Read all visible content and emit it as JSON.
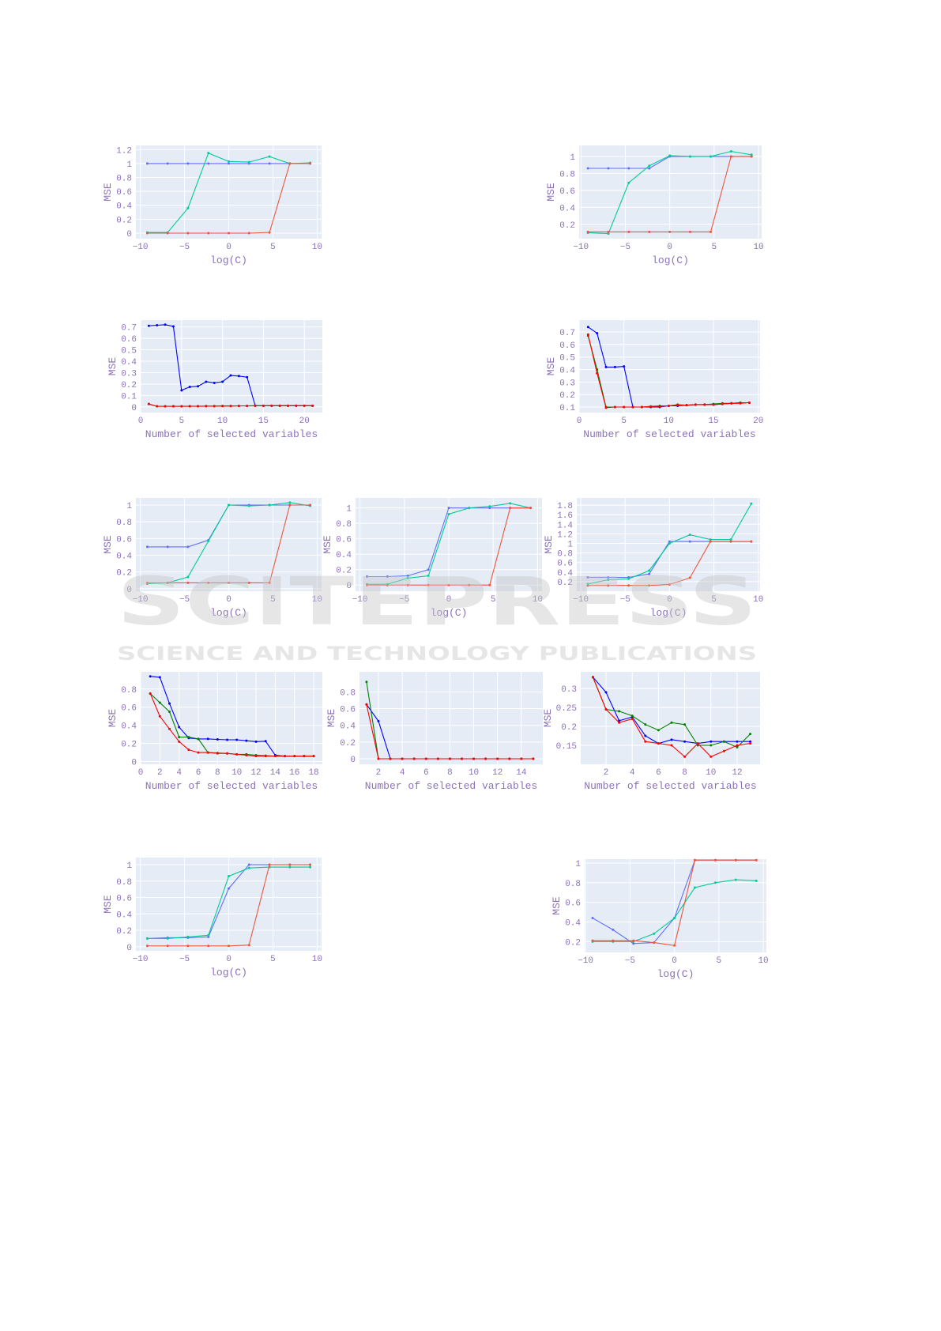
{
  "watermark": {
    "main": "SCITEPRESS",
    "sub": "SCIENCE AND TECHNOLOGY PUBLICATIONS"
  },
  "colors": {
    "plot_bg": "#e5ecf6",
    "grid": "#ffffff",
    "tick_text": "#8b72b8"
  },
  "chart_data": [
    {
      "id": "A",
      "type": "line",
      "xlabel": "log(C)",
      "ylabel": "MSE",
      "xlim": [
        -10.5,
        10.5
      ],
      "ylim": [
        -0.08,
        1.26
      ],
      "xticks": [
        -10,
        -5,
        0,
        5,
        10
      ],
      "yticks": [
        0,
        0.2,
        0.4,
        0.6,
        0.8,
        1,
        1.2
      ],
      "x": [
        -9.21,
        -6.91,
        -4.61,
        -2.3,
        0,
        2.3,
        4.61,
        6.91,
        9.21
      ],
      "series": [
        {
          "color": "#636efa",
          "values": [
            1,
            1,
            1,
            1,
            1,
            1,
            1,
            1,
            1
          ]
        },
        {
          "color": "#00cc96",
          "values": [
            0.01,
            0.01,
            0.36,
            1.15,
            1.03,
            1.02,
            1.1,
            1.0,
            1.01
          ]
        },
        {
          "color": "#ef553b",
          "values": [
            0,
            0,
            0,
            0,
            0,
            0,
            0.01,
            1.0,
            1.0
          ]
        }
      ]
    },
    {
      "id": "B",
      "type": "line",
      "xlabel": "log(C)",
      "ylabel": "MSE",
      "xlim": [
        -10.2,
        10.35
      ],
      "ylim": [
        0.03,
        1.13
      ],
      "xticks": [
        -10,
        -5,
        0,
        5,
        10
      ],
      "yticks": [
        0.2,
        0.4,
        0.6,
        0.8,
        1
      ],
      "x": [
        -9.21,
        -6.91,
        -4.61,
        -2.3,
        0,
        2.3,
        4.61,
        6.91,
        9.21
      ],
      "series": [
        {
          "color": "#636efa",
          "values": [
            0.86,
            0.86,
            0.86,
            0.86,
            1.0,
            1.0,
            1.0,
            1.0,
            1.0
          ]
        },
        {
          "color": "#00cc96",
          "values": [
            0.1,
            0.09,
            0.69,
            0.89,
            1.01,
            1.0,
            1.0,
            1.06,
            1.02
          ]
        },
        {
          "color": "#ef553b",
          "values": [
            0.11,
            0.11,
            0.11,
            0.11,
            0.11,
            0.11,
            0.11,
            1.0,
            1.0
          ]
        }
      ]
    },
    {
      "id": "C",
      "type": "line",
      "xlabel": "Number of selected variables",
      "ylabel": "MSE",
      "xlim": [
        0,
        22.2
      ],
      "ylim": [
        -0.05,
        0.76
      ],
      "xticks": [
        0,
        5,
        10,
        15,
        20
      ],
      "yticks": [
        0,
        0.1,
        0.2,
        0.3,
        0.4,
        0.5,
        0.6,
        0.7
      ],
      "x": [
        1,
        2,
        3,
        4,
        5,
        6,
        7,
        8,
        9,
        10,
        11,
        12,
        13,
        14,
        15,
        16,
        17,
        18,
        19,
        20,
        21
      ],
      "series": [
        {
          "color": "#0000ff",
          "values": [
            0.71,
            0.715,
            0.72,
            0.705,
            0.145,
            0.175,
            0.18,
            0.22,
            0.21,
            0.22,
            0.275,
            0.27,
            0.26,
            0.01,
            0.01,
            0.01,
            0.01,
            0.01,
            0.01,
            0.01,
            0.01
          ]
        },
        {
          "color": "#008000",
          "values": [
            0.025,
            0.005,
            0.005,
            0.005,
            0.005,
            0.006,
            0.006,
            0.007,
            0.007,
            0.008,
            0.008,
            0.009,
            0.009,
            0.01,
            0.01,
            0.01,
            0.01,
            0.01,
            0.01,
            0.01,
            0.01
          ]
        },
        {
          "color": "#ff0000",
          "values": [
            0.025,
            0.005,
            0.005,
            0.005,
            0.005,
            0.005,
            0.005,
            0.006,
            0.006,
            0.007,
            0.007,
            0.008,
            0.008,
            0.009,
            0.009,
            0.01,
            0.01,
            0.01,
            0.01,
            0.01,
            0.01
          ]
        }
      ]
    },
    {
      "id": "D",
      "type": "line",
      "xlabel": "Number of selected variables",
      "ylabel": "MSE",
      "xlim": [
        0,
        20.2
      ],
      "ylim": [
        0.056,
        0.795
      ],
      "xticks": [
        0,
        5,
        10,
        15,
        20
      ],
      "yticks": [
        0.1,
        0.2,
        0.3,
        0.4,
        0.5,
        0.6,
        0.7
      ],
      "x": [
        1,
        2,
        3,
        4,
        5,
        6,
        7,
        8,
        9,
        10,
        11,
        12,
        13,
        14,
        15,
        16,
        17,
        18,
        19
      ],
      "series": [
        {
          "color": "#0000ff",
          "values": [
            0.74,
            0.69,
            0.42,
            0.42,
            0.425,
            0.1,
            0.1,
            0.1,
            0.1,
            0.11,
            0.11,
            0.115,
            0.12,
            0.12,
            0.12,
            0.125,
            0.13,
            0.135,
            0.135
          ]
        },
        {
          "color": "#008000",
          "values": [
            0.67,
            0.4,
            0.1,
            0.1,
            0.1,
            0.1,
            0.1,
            0.105,
            0.11,
            0.11,
            0.12,
            0.115,
            0.12,
            0.12,
            0.125,
            0.13,
            0.13,
            0.135,
            0.135
          ]
        },
        {
          "color": "#ff0000",
          "values": [
            0.68,
            0.37,
            0.095,
            0.1,
            0.1,
            0.1,
            0.1,
            0.105,
            0.105,
            0.11,
            0.115,
            0.115,
            0.12,
            0.12,
            0.12,
            0.125,
            0.13,
            0.13,
            0.135
          ]
        }
      ]
    },
    {
      "id": "E",
      "type": "line",
      "xlabel": "log(C)",
      "ylabel": "MSE",
      "xlim": [
        -10.5,
        10.5
      ],
      "ylim": [
        -0.03,
        1.085
      ],
      "xticks": [
        -10,
        -5,
        0,
        5,
        10
      ],
      "yticks": [
        0,
        0.2,
        0.4,
        0.6,
        0.8,
        1
      ],
      "x": [
        -9.21,
        -6.91,
        -4.61,
        -2.3,
        0,
        2.3,
        4.61,
        6.91,
        9.21
      ],
      "series": [
        {
          "color": "#636efa",
          "values": [
            0.5,
            0.5,
            0.5,
            0.58,
            1.0,
            1.0,
            1.0,
            1.0,
            1.0
          ]
        },
        {
          "color": "#00cc96",
          "values": [
            0.06,
            0.07,
            0.14,
            0.57,
            1.0,
            0.99,
            1.0,
            1.03,
            0.99
          ]
        },
        {
          "color": "#ef553b",
          "values": [
            0.07,
            0.07,
            0.07,
            0.07,
            0.07,
            0.07,
            0.07,
            1.0,
            1.0
          ]
        }
      ]
    },
    {
      "id": "F",
      "type": "line",
      "xlabel": "log(C)",
      "ylabel": "MSE",
      "xlim": [
        -10.5,
        10.5
      ],
      "ylim": [
        -0.08,
        1.13
      ],
      "xticks": [
        -10,
        -5,
        0,
        5,
        10
      ],
      "yticks": [
        0,
        0.2,
        0.4,
        0.6,
        0.8,
        1
      ],
      "x": [
        -9.21,
        -6.91,
        -4.61,
        -2.3,
        0,
        2.3,
        4.61,
        6.91,
        9.21
      ],
      "series": [
        {
          "color": "#636efa",
          "values": [
            0.11,
            0.11,
            0.12,
            0.2,
            1.0,
            1.0,
            1.0,
            1.0,
            1.0
          ]
        },
        {
          "color": "#00cc96",
          "values": [
            0.01,
            0.01,
            0.09,
            0.12,
            0.92,
            1.0,
            1.02,
            1.06,
            1.0
          ]
        },
        {
          "color": "#ef553b",
          "values": [
            0,
            0,
            0,
            0,
            0,
            0,
            0,
            1.0,
            1.0
          ]
        }
      ]
    },
    {
      "id": "G",
      "type": "line",
      "xlabel": "log(C)",
      "ylabel": "MSE",
      "xlim": [
        -10.45,
        10.2
      ],
      "ylim": [
        0.0,
        1.95
      ],
      "xticks": [
        -10,
        -5,
        0,
        5,
        10
      ],
      "yticks": [
        0.2,
        0.4,
        0.6,
        0.8,
        1,
        1.2,
        1.4,
        1.6,
        1.8
      ],
      "x": [
        -9.21,
        -6.91,
        -4.61,
        -2.3,
        0,
        2.3,
        4.61,
        6.91,
        9.21
      ],
      "series": [
        {
          "color": "#636efa",
          "values": [
            0.29,
            0.29,
            0.29,
            0.36,
            1.04,
            1.04,
            1.04,
            1.04,
            1.04
          ]
        },
        {
          "color": "#00cc96",
          "values": [
            0.15,
            0.24,
            0.26,
            0.43,
            1.0,
            1.18,
            1.08,
            1.08,
            1.83
          ]
        },
        {
          "color": "#ef553b",
          "values": [
            0.12,
            0.12,
            0.12,
            0.12,
            0.14,
            0.28,
            1.04,
            1.04,
            1.04
          ]
        }
      ]
    },
    {
      "id": "H",
      "type": "line",
      "xlabel": "Number of selected variables",
      "ylabel": "MSE",
      "xlim": [
        0,
        18.9
      ],
      "ylim": [
        -0.03,
        0.99
      ],
      "xticks": [
        0,
        2,
        4,
        6,
        8,
        10,
        12,
        14,
        16,
        18
      ],
      "yticks": [
        0,
        0.2,
        0.4,
        0.6,
        0.8
      ],
      "x": [
        1,
        2,
        3,
        4,
        5,
        6,
        7,
        8,
        9,
        10,
        11,
        12,
        13,
        14,
        15,
        16,
        17,
        18
      ],
      "series": [
        {
          "color": "#0000ff",
          "values": [
            0.94,
            0.93,
            0.64,
            0.38,
            0.26,
            0.25,
            0.25,
            0.245,
            0.24,
            0.24,
            0.23,
            0.22,
            0.225,
            0.07,
            0.06,
            0.06,
            0.06,
            0.06
          ]
        },
        {
          "color": "#008000",
          "values": [
            0.75,
            0.65,
            0.55,
            0.27,
            0.27,
            0.25,
            0.1,
            0.095,
            0.09,
            0.08,
            0.08,
            0.07,
            0.065,
            0.06,
            0.06,
            0.06,
            0.06,
            0.06
          ]
        },
        {
          "color": "#ff0000",
          "values": [
            0.75,
            0.5,
            0.36,
            0.22,
            0.13,
            0.1,
            0.1,
            0.09,
            0.09,
            0.08,
            0.07,
            0.06,
            0.06,
            0.06,
            0.06,
            0.06,
            0.06,
            0.06
          ]
        }
      ]
    },
    {
      "id": "I",
      "type": "line",
      "xlabel": "Number of selected variables",
      "ylabel": "MSE",
      "xlim": [
        0.41,
        15.8
      ],
      "ylim": [
        -0.066,
        1.04
      ],
      "xticks": [
        2,
        4,
        6,
        8,
        10,
        12,
        14
      ],
      "yticks": [
        0,
        0.2,
        0.4,
        0.6,
        0.8
      ],
      "x": [
        1,
        2,
        3,
        4,
        5,
        6,
        7,
        8,
        9,
        10,
        11,
        12,
        13,
        14,
        15
      ],
      "series": [
        {
          "color": "#0000ff",
          "values": [
            0.65,
            0.45,
            0,
            0,
            0,
            0,
            0,
            0,
            0,
            0,
            0,
            0,
            0,
            0,
            0
          ]
        },
        {
          "color": "#008000",
          "values": [
            0.92,
            0,
            0,
            0,
            0,
            0,
            0,
            0,
            0,
            0,
            0,
            0,
            0,
            0,
            0
          ]
        },
        {
          "color": "#ff0000",
          "values": [
            0.65,
            0,
            0,
            0,
            0,
            0,
            0,
            0,
            0,
            0,
            0,
            0,
            0,
            0,
            0
          ]
        }
      ]
    },
    {
      "id": "J",
      "type": "line",
      "xlabel": "Number of selected variables",
      "ylabel": "MSE",
      "xlim": [
        0.07,
        13.75
      ],
      "ylim": [
        0.1,
        0.344
      ],
      "xticks": [
        2,
        4,
        6,
        8,
        10,
        12
      ],
      "yticks": [
        0.15,
        0.2,
        0.25,
        0.3
      ],
      "x": [
        1,
        2,
        3,
        4,
        5,
        6,
        7,
        8,
        9,
        10,
        11,
        12,
        13
      ],
      "series": [
        {
          "color": "#0000ff",
          "values": [
            0.33,
            0.29,
            0.215,
            0.225,
            0.175,
            0.155,
            0.165,
            0.16,
            0.155,
            0.16,
            0.16,
            0.16,
            0.16
          ]
        },
        {
          "color": "#008000",
          "values": [
            0.33,
            0.245,
            0.24,
            0.228,
            0.205,
            0.19,
            0.21,
            0.205,
            0.15,
            0.15,
            0.16,
            0.145,
            0.18
          ]
        },
        {
          "color": "#ff0000",
          "values": [
            0.33,
            0.245,
            0.21,
            0.22,
            0.16,
            0.155,
            0.15,
            0.12,
            0.155,
            0.12,
            0.135,
            0.15,
            0.155
          ]
        }
      ]
    },
    {
      "id": "K",
      "type": "line",
      "xlabel": "log(C)",
      "ylabel": "MSE",
      "xlim": [
        -10.5,
        10.5
      ],
      "ylim": [
        -0.05,
        1.087
      ],
      "xticks": [
        -10,
        -5,
        0,
        5,
        10
      ],
      "yticks": [
        0,
        0.2,
        0.4,
        0.6,
        0.8,
        1
      ],
      "x": [
        -9.21,
        -6.91,
        -4.61,
        -2.3,
        0,
        2.3,
        4.61,
        6.91,
        9.21
      ],
      "series": [
        {
          "color": "#636efa",
          "values": [
            0.1,
            0.11,
            0.11,
            0.12,
            0.71,
            1.0,
            1.0,
            1.0,
            1.0
          ]
        },
        {
          "color": "#00cc96",
          "values": [
            0.1,
            0.1,
            0.12,
            0.14,
            0.86,
            0.96,
            0.97,
            0.97,
            0.97
          ]
        },
        {
          "color": "#ef553b",
          "values": [
            0.01,
            0.01,
            0.01,
            0.01,
            0.01,
            0.02,
            1.0,
            1.0,
            1.0
          ]
        }
      ]
    },
    {
      "id": "L",
      "type": "line",
      "xlabel": "log(C)",
      "ylabel": "MSE",
      "xlim": [
        -10.1,
        10.35
      ],
      "ylim": [
        0.09,
        1.04
      ],
      "xticks": [
        -10,
        -5,
        0,
        5,
        10
      ],
      "yticks": [
        0.2,
        0.4,
        0.6,
        0.8,
        1
      ],
      "x": [
        -9.21,
        -6.91,
        -4.61,
        -2.3,
        0,
        2.3,
        4.61,
        6.91,
        9.21
      ],
      "series": [
        {
          "color": "#636efa",
          "values": [
            0.44,
            0.32,
            0.18,
            0.19,
            0.44,
            1.03,
            1.03,
            1.03,
            1.03
          ]
        },
        {
          "color": "#00cc96",
          "values": [
            0.2,
            0.2,
            0.2,
            0.28,
            0.44,
            0.75,
            0.8,
            0.83,
            0.82
          ]
        },
        {
          "color": "#ef553b",
          "values": [
            0.21,
            0.21,
            0.21,
            0.19,
            0.16,
            1.03,
            1.03,
            1.03,
            1.03
          ]
        }
      ]
    }
  ]
}
